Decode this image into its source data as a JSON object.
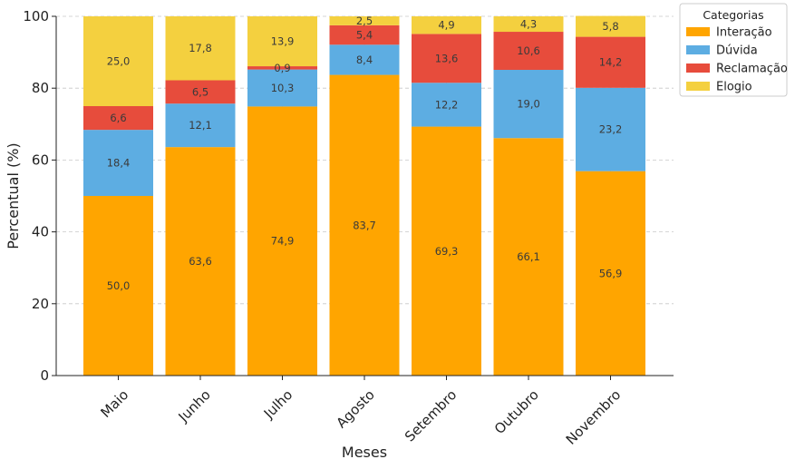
{
  "chart_data": {
    "type": "bar",
    "stacked": true,
    "title": "",
    "xlabel": "Meses",
    "ylabel": "Percentual (%)",
    "ylim": [
      0,
      100
    ],
    "yticks": [
      "0",
      "20",
      "40",
      "60",
      "80",
      "100"
    ],
    "grid": true,
    "categories": [
      "Maio",
      "Junho",
      "Julho",
      "Agosto",
      "Setembro",
      "Outubro",
      "Novembro"
    ],
    "series": [
      {
        "name": "Interação",
        "color": "#ffa500",
        "values": [
          50.0,
          63.6,
          74.9,
          83.7,
          69.3,
          66.1,
          56.9
        ],
        "labels": [
          "50,0",
          "63,6",
          "74,9",
          "83,7",
          "69,3",
          "66,1",
          "56,9"
        ]
      },
      {
        "name": "Dúvida",
        "color": "#5dade2",
        "values": [
          18.4,
          12.1,
          10.3,
          8.4,
          12.2,
          19.0,
          23.2
        ],
        "labels": [
          "18,4",
          "12,1",
          "10,3",
          "8,4",
          "12,2",
          "19,0",
          "23,2"
        ]
      },
      {
        "name": "Reclamação",
        "color": "#e74c3c",
        "values": [
          6.6,
          6.5,
          0.9,
          5.4,
          13.6,
          10.6,
          14.2
        ],
        "labels": [
          "6,6",
          "6,5",
          "0,9",
          "5,4",
          "13,6",
          "10,6",
          "14,2"
        ]
      },
      {
        "name": "Elogio",
        "color": "#f4d03f",
        "values": [
          25.0,
          17.8,
          13.9,
          2.5,
          4.9,
          4.3,
          5.8
        ],
        "labels": [
          "25,0",
          "17,8",
          "13,9",
          "2,5",
          "4,9",
          "4,3",
          "5,8"
        ]
      }
    ],
    "legend": {
      "title": "Categorias",
      "position": "upper-right-outside"
    }
  }
}
